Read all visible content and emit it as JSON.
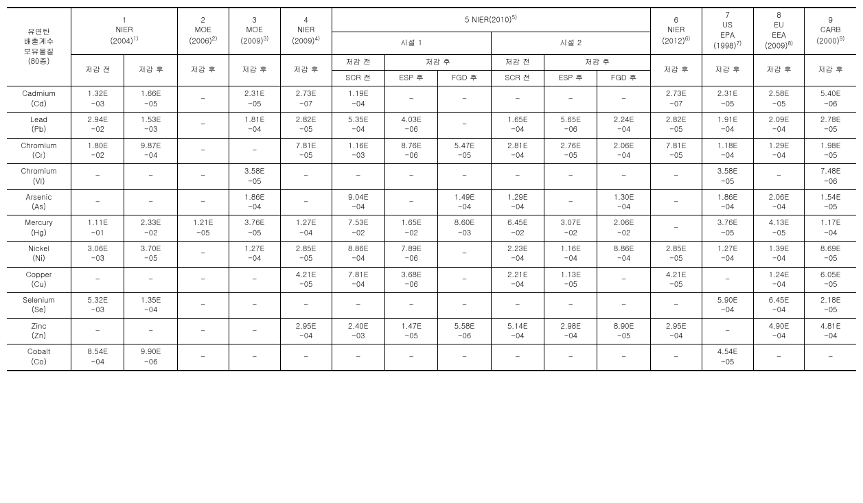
{
  "header": {
    "rowhead": "유연탄\n배출계수\n보유물질\n(80종)",
    "cols": {
      "c1": {
        "num": "1",
        "src": "NIER",
        "year": "(2004)",
        "sup": "1)"
      },
      "c2": {
        "num": "2",
        "src": "MOE",
        "year": "(2006)",
        "sup": "2)"
      },
      "c3": {
        "num": "3",
        "src": "MOE",
        "year": "(2009)",
        "sup": "3)"
      },
      "c4": {
        "num": "4",
        "src": "NIER",
        "year": "(2009)",
        "sup": "4)"
      },
      "c5": {
        "num": "5 NIER(2010)",
        "sup": "5)"
      },
      "c6": {
        "num": "6",
        "src": "NIER",
        "year": "(2012)",
        "sup": "6)"
      },
      "c7": {
        "num": "7",
        "src": "US\nEPA",
        "year": "(1998)",
        "sup": "7)"
      },
      "c8": {
        "num": "8",
        "src": "EU\nEEA",
        "year": "(2009)",
        "sup": "8)"
      },
      "c9": {
        "num": "9",
        "src": "CARB",
        "year": "(2000)",
        "sup": "9)"
      }
    },
    "sub": {
      "facility1": "시설 1",
      "facility2": "시설 2",
      "before": "저감 전",
      "after": "저감 후",
      "scr": "SCR 전",
      "esp": "ESP 후",
      "fgd": "FGD 후"
    }
  },
  "rows": [
    {
      "label": "Cadmium\n(Cd)",
      "v": [
        "1.32E-03",
        "1.66E-05",
        "–",
        "2.31E-05",
        "2.73E-07",
        "1.19E-04",
        "–",
        "–",
        "–",
        "–",
        "–",
        "2.73E-07",
        "2.31E-05",
        "2.58E-05",
        "5.40E-06"
      ]
    },
    {
      "label": "Lead\n(Pb)",
      "v": [
        "2.94E-02",
        "1.53E-03",
        "–",
        "1.81E-04",
        "2.82E-05",
        "5.35E-04",
        "4.03E-06",
        "–",
        "1.65E-04",
        "5.65E-06",
        "2.24E-04",
        "2.82E-05",
        "1.91E-04",
        "2.09E-04",
        "2.78E-05"
      ]
    },
    {
      "label": "Chromium\n(Cr)",
      "v": [
        "1.80E-02",
        "9.87E-04",
        "–",
        "–",
        "7.81E-05",
        "1.16E-03",
        "8.76E-06",
        "5.47E-05",
        "2.81E-04",
        "2.76E-05",
        "2.06E-04",
        "7.81E-05",
        "1.18E-04",
        "1.29E-04",
        "1.98E-05"
      ]
    },
    {
      "label": "Chromium\n(VI)",
      "v": [
        "–",
        "–",
        "–",
        "3.58E-05",
        "–",
        "–",
        "–",
        "–",
        "–",
        "–",
        "–",
        "–",
        "3.58E-05",
        "–",
        "7.48E-06"
      ]
    },
    {
      "label": "Arsenic\n(As)",
      "v": [
        "–",
        "–",
        "–",
        "1.86E-04",
        "–",
        "9.04E-04",
        "–",
        "1.49E-04",
        "1.29E-04",
        "–",
        "1.30E-04",
        "–",
        "1.86E-04",
        "2.06E-04",
        "1.54E-05"
      ]
    },
    {
      "label": "Mercury\n(Hg)",
      "v": [
        "1.11E-01",
        "2.33E-02",
        "1.21E-05",
        "3.76E-05",
        "1.27E-04",
        "7.53E-02",
        "1.65E-02",
        "8.60E-03",
        "6.45E-02",
        "3.07E-02",
        "2.06E-02",
        "–",
        "3.76E-05",
        "4.13E-05",
        "1.17E-04"
      ]
    },
    {
      "label": "Nickel\n(Ni)",
      "v": [
        "3.06E-03",
        "3.70E-05",
        "–",
        "1.27E-04",
        "2.85E-05",
        "8.86E-04",
        "7.89E-06",
        "–",
        "2.23E-04",
        "1.16E-04",
        "8.86E-04",
        "2.85E-05",
        "1.27E-04",
        "1.39E-04",
        "8.69E-05"
      ]
    },
    {
      "label": "Copper\n(Cu)",
      "v": [
        "–",
        "–",
        "–",
        "–",
        "4.21E-05",
        "7.81E-04",
        "3.68E-06",
        "–",
        "2.21E-04",
        "1.13E-05",
        "–",
        "4.21E-05",
        "–",
        "1.24E-04",
        "6.05E-05"
      ]
    },
    {
      "label": "Selenium\n(Se)",
      "v": [
        "5.32E-03",
        "1.35E-04",
        "–",
        "–",
        "–",
        "–",
        "–",
        "–",
        "–",
        "–",
        "–",
        "–",
        "5.90E-04",
        "6.45E-04",
        "2.18E-05"
      ]
    },
    {
      "label": "Zinc\n(Zn)",
      "v": [
        "–",
        "–",
        "–",
        "–",
        "2.95E-04",
        "2.40E-03",
        "1.47E-05",
        "5.58E-06",
        "5.14E-04",
        "2.98E-04",
        "8.90E-05",
        "2.95E-04",
        "–",
        "4.90E-04",
        "4.81E-04"
      ]
    },
    {
      "label": "Cobalt\n(Co)",
      "v": [
        "8.54E-04",
        "9.90E-06",
        "–",
        "–",
        "–",
        "–",
        "–",
        "–",
        "–",
        "–",
        "–",
        "–",
        "4.54E-05",
        "–",
        "–"
      ]
    }
  ]
}
